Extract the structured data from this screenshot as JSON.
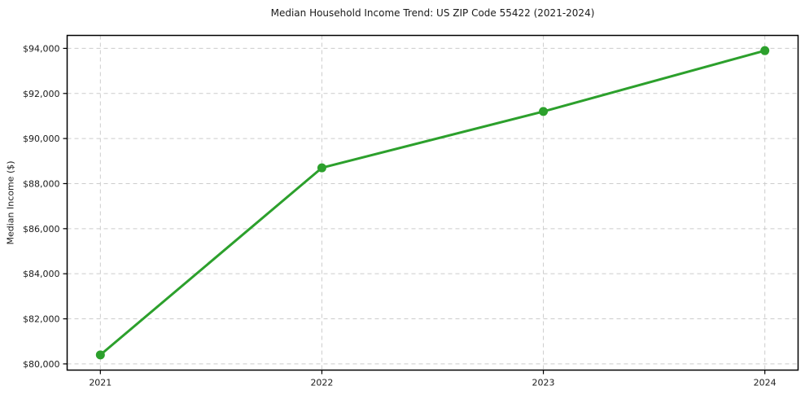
{
  "chart_data": {
    "type": "line",
    "title": "Median Household Income Trend: US ZIP Code 55422 (2021-2024)",
    "xlabel": "",
    "ylabel": "Median Income ($)",
    "x": [
      2021,
      2022,
      2023,
      2024
    ],
    "values": [
      80400,
      88700,
      91200,
      93900
    ],
    "xtick_labels": [
      "2021",
      "2022",
      "2023",
      "2024"
    ],
    "ytick_values": [
      80000,
      82000,
      84000,
      86000,
      88000,
      90000,
      92000,
      94000
    ],
    "ytick_labels": [
      "$80,000",
      "$82,000",
      "$84,000",
      "$86,000",
      "$88,000",
      "$90,000",
      "$92,000",
      "$94,000"
    ],
    "xlim": [
      2020.85,
      2024.15
    ],
    "ylim": [
      79725,
      94575
    ],
    "grid": true,
    "grid_style": "dashed",
    "legend": "none",
    "colors": {
      "line": "#2ca02c",
      "marker": "#2ca02c",
      "grid": "#cccccc",
      "spine": "#000000",
      "text": "#1a1a1a",
      "background": "#ffffff"
    }
  }
}
